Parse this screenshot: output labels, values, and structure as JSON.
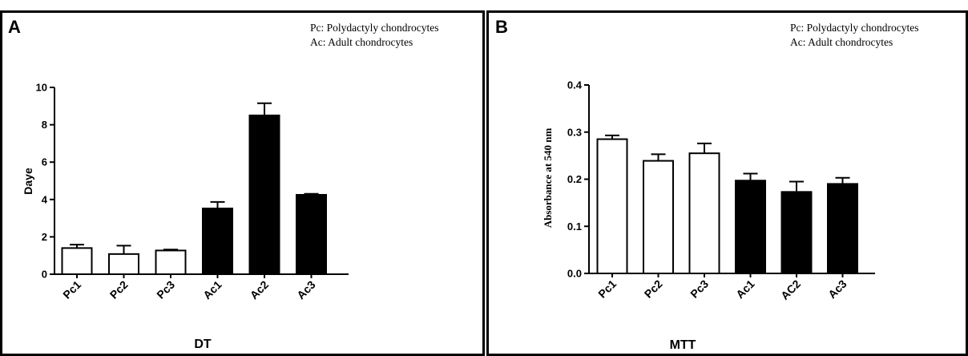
{
  "chart_data": [
    {
      "type": "bar",
      "panel": "A",
      "legend": [
        "Pc: Polydactyly chondrocytes",
        "Ac: Adult chondrocytes"
      ],
      "categories": [
        "Pc1",
        "Pc2",
        "Pc3",
        "Ac1",
        "Ac2",
        "Ac3"
      ],
      "values": [
        1.4,
        1.08,
        1.27,
        3.52,
        8.5,
        4.25
      ],
      "errors": [
        0.18,
        0.45,
        0.05,
        0.35,
        0.65,
        0.05
      ],
      "bar_fills": [
        "#ffffff",
        "#ffffff",
        "#ffffff",
        "#000000",
        "#000000",
        "#000000"
      ],
      "xlabel": "DT",
      "ylabel": "Daye",
      "ylim": [
        0,
        10
      ],
      "yticks": [
        0,
        2,
        4,
        6,
        8,
        10
      ],
      "ytick_labels": [
        "0",
        "2",
        "4",
        "6",
        "8",
        "10"
      ],
      "grid": false
    },
    {
      "type": "bar",
      "panel": "B",
      "legend": [
        "Pc: Polydactyly chondrocytes",
        "Ac: Adult chondrocytes"
      ],
      "categories": [
        "Pc1",
        "Pc2",
        "Pc3",
        "Ac1",
        "AC2",
        "Ac3"
      ],
      "values": [
        0.285,
        0.239,
        0.255,
        0.197,
        0.173,
        0.19
      ],
      "errors": [
        0.008,
        0.014,
        0.021,
        0.015,
        0.022,
        0.013
      ],
      "bar_fills": [
        "#ffffff",
        "#ffffff",
        "#ffffff",
        "#000000",
        "#000000",
        "#000000"
      ],
      "xlabel": "MTT",
      "ylabel": "Absorbance at 540 nm",
      "ylim": [
        0,
        0.4
      ],
      "yticks": [
        0,
        0.1,
        0.2,
        0.3,
        0.4
      ],
      "ytick_labels": [
        "0.0",
        "0.1",
        "0.2",
        "0.3",
        "0.4"
      ],
      "grid": false
    }
  ]
}
